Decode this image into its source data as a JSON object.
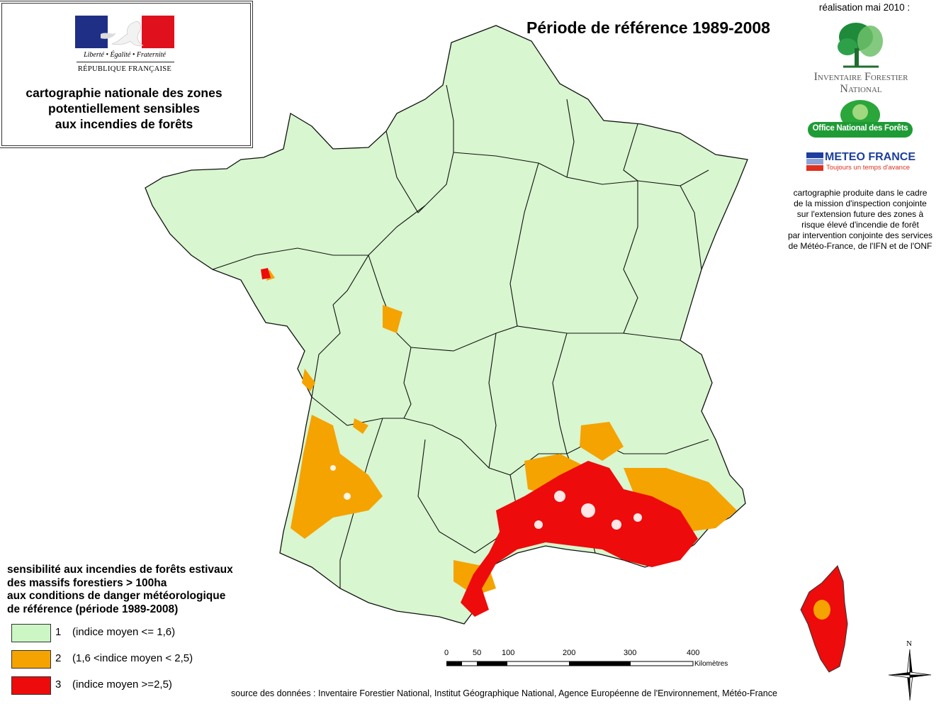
{
  "header": {
    "flag": {
      "colors": [
        "#1f2f86",
        "#ffffff",
        "#e0111d"
      ]
    },
    "motto": "Liberté • Égalité • Fraternité",
    "republic": "RÉPUBLIQUE FRANÇAISE",
    "title_lines": [
      "cartographie nationale des zones",
      "potentiellement sensibles",
      "aux incendies de forêts"
    ]
  },
  "map": {
    "period_title": "Période de référence 1989-2008",
    "legend": {
      "title_lines": [
        "sensibilité aux incendies de forêts estivaux",
        "des massifs forestiers > 100ha",
        "aux conditions de danger météorologique",
        "de référence (période 1989-2008)"
      ],
      "classes": [
        {
          "num": "1",
          "label": "(indice moyen <= 1,6)",
          "color": "#ccf7c5"
        },
        {
          "num": "2",
          "label": "(1,6 <indice moyen < 2,5)",
          "color": "#f5a300"
        },
        {
          "num": "3",
          "label": "(indice moyen >=2,5)",
          "color": "#ee0b0b"
        }
      ]
    },
    "scale": {
      "ticks": [
        "0",
        "50",
        "100",
        "200",
        "300",
        "400"
      ],
      "unit": "Kilomètres"
    },
    "north": "N"
  },
  "side": {
    "realisation": "réalisation mai 2010 :",
    "ifn_lines": [
      "Inventaire Forestier",
      "National"
    ],
    "onf": "Office National des Forêts",
    "meteo_name": "METEO FRANCE",
    "meteo_slogan": "Toujours un temps d'avance",
    "mission_lines": [
      "cartographie produite dans le cadre",
      "de la mission d'inspection conjointe",
      "sur l'extension future des zones à",
      "risque élevé d'incendie de forêt",
      "par intervention conjointe des services",
      "de Météo-France, de l'IFN et de l'ONF"
    ]
  },
  "footer": {
    "source": "source des données : Inventaire Forestier National, Institut Géographique National,  Agence Européenne de l'Environnement, Météo-France"
  }
}
